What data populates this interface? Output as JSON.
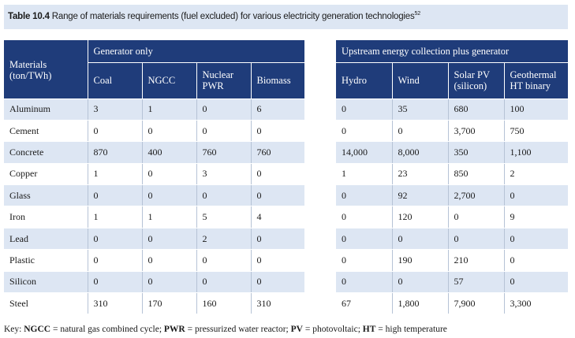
{
  "caption": {
    "label": "Table 10.4",
    "text": "Range of materials requirements (fuel excluded) for various electricity generation technologies",
    "footnote": "52"
  },
  "left_table": {
    "row_header": "Materials (ton/TWh)",
    "group": "Generator only",
    "columns": [
      "Coal",
      "NGCC",
      "Nuclear PWR",
      "Biomass"
    ]
  },
  "right_table": {
    "group": "Upstream energy collection plus generator",
    "columns": [
      "Hydro",
      "Wind",
      "Solar PV (silicon)",
      "Geothermal HT binary"
    ]
  },
  "rows": [
    {
      "material": "Aluminum",
      "left": [
        "3",
        "1",
        "0",
        "6"
      ],
      "right": [
        "0",
        "35",
        "680",
        "100"
      ]
    },
    {
      "material": "Cement",
      "left": [
        "0",
        "0",
        "0",
        "0"
      ],
      "right": [
        "0",
        "0",
        "3,700",
        "750"
      ]
    },
    {
      "material": "Concrete",
      "left": [
        "870",
        "400",
        "760",
        "760"
      ],
      "right": [
        "14,000",
        "8,000",
        "350",
        "1,100"
      ]
    },
    {
      "material": "Copper",
      "left": [
        "1",
        "0",
        "3",
        "0"
      ],
      "right": [
        "1",
        "23",
        "850",
        "2"
      ]
    },
    {
      "material": "Glass",
      "left": [
        "0",
        "0",
        "0",
        "0"
      ],
      "right": [
        "0",
        "92",
        "2,700",
        "0"
      ]
    },
    {
      "material": "Iron",
      "left": [
        "1",
        "1",
        "5",
        "4"
      ],
      "right": [
        "0",
        "120",
        "0",
        "9"
      ]
    },
    {
      "material": "Lead",
      "left": [
        "0",
        "0",
        "2",
        "0"
      ],
      "right": [
        "0",
        "0",
        "0",
        "0"
      ]
    },
    {
      "material": "Plastic",
      "left": [
        "0",
        "0",
        "0",
        "0"
      ],
      "right": [
        "0",
        "190",
        "210",
        "0"
      ]
    },
    {
      "material": "Silicon",
      "left": [
        "0",
        "0",
        "0",
        "0"
      ],
      "right": [
        "0",
        "0",
        "57",
        "0"
      ]
    },
    {
      "material": "Steel",
      "left": [
        "310",
        "170",
        "160",
        "310"
      ],
      "right": [
        "67",
        "1,800",
        "7,900",
        "3,300"
      ]
    }
  ],
  "key": {
    "prefix": "Key: ",
    "items": [
      {
        "abbr": "NGCC",
        "def": " = natural gas combined cycle; "
      },
      {
        "abbr": "PWR",
        "def": " = pressurized water reactor; "
      },
      {
        "abbr": "PV",
        "def": " = photovoltaic; "
      },
      {
        "abbr": "HT",
        "def": " = high temperature"
      }
    ]
  },
  "colors": {
    "header_bg": "#1f3c7a",
    "stripe": "#dde6f3",
    "caption_bg": "#dde6f3"
  }
}
